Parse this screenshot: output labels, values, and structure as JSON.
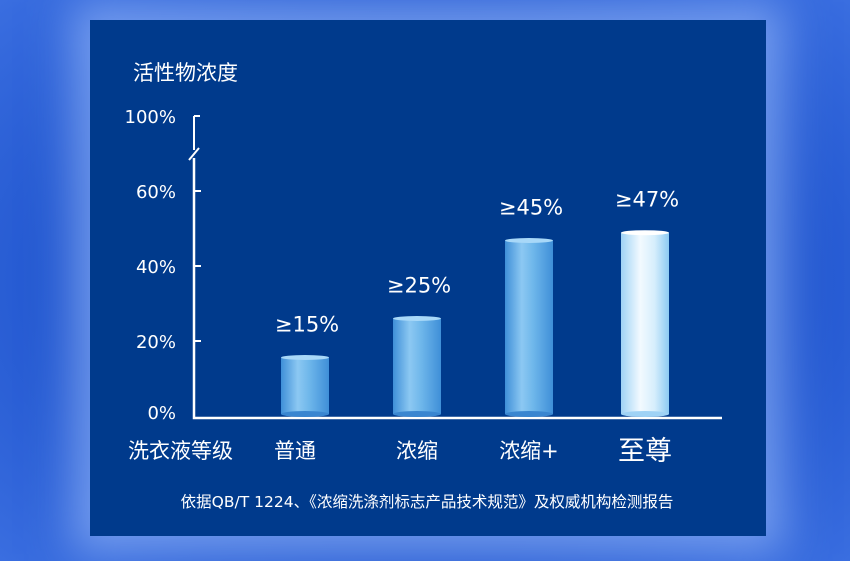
{
  "chart_data": {
    "type": "bar",
    "ylabel": "活性物浓度",
    "xlabel": "洗衣液等级",
    "categories": [
      "普通",
      "浓缩",
      "浓缩+",
      "至尊"
    ],
    "values": [
      15,
      25,
      45,
      47
    ],
    "data_labels": [
      "≥15%",
      "≥25%",
      "≥45%",
      "≥47%"
    ],
    "y_ticks": [
      "0%",
      "20%",
      "40%",
      "60%",
      "100%"
    ],
    "y_tick_values": [
      0,
      20,
      40,
      60,
      100
    ],
    "axis_break": "between 60% and 100%",
    "ylim": [
      0,
      100
    ],
    "grid": false,
    "bar_color": "#5eaee8",
    "highlight_bar_color": "#d8efff",
    "footnote": "依据QB/T 1224、《浓缩洗涤剂标志产品技术规范》及权威机构检测报告"
  },
  "colors": {
    "panel": "#003a8c",
    "background": "#1d4fc4"
  }
}
